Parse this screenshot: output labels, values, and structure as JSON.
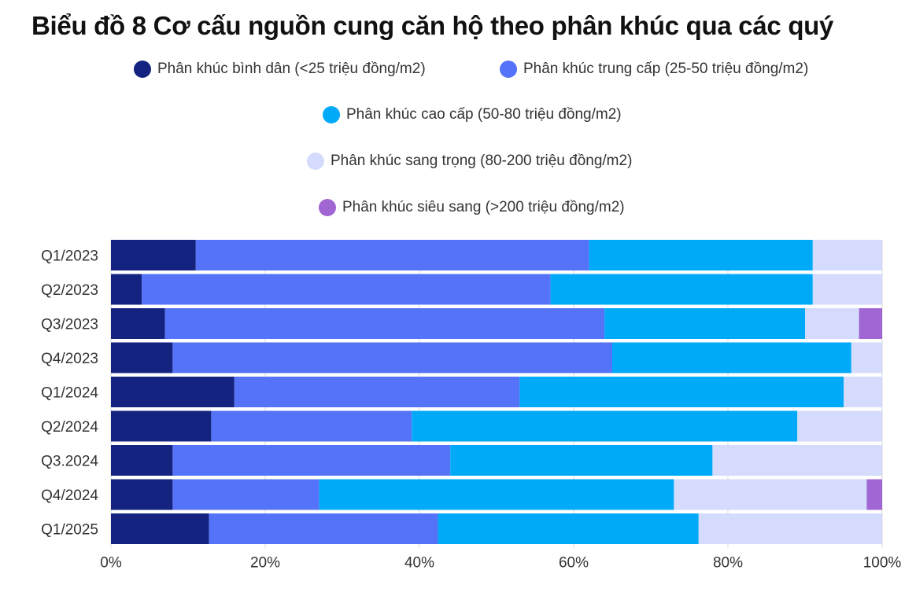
{
  "title": "Biểu đồ 8 Cơ cấu nguồn cung căn hộ theo phân khúc qua các quý",
  "chart_data": {
    "type": "bar",
    "orientation": "horizontal",
    "stacked": "percent",
    "title": "Biểu đồ 8 Cơ cấu nguồn cung căn hộ theo phân khúc qua các quý",
    "categories": [
      "Q1/2023",
      "Q2/2023",
      "Q3/2023",
      "Q4/2023",
      "Q1/2024",
      "Q2/2024",
      "Q3.2024",
      "Q4/2024",
      "Q1/2025"
    ],
    "series": [
      {
        "name": "Phân khúc bình dân (<25 triệu đồng/m2)",
        "color": "#13237F",
        "values": [
          11,
          4,
          7,
          8,
          16,
          13,
          8,
          8,
          12.7
        ]
      },
      {
        "name": "Phân khúc trung cấp (25-50 triệu đồng/m2)",
        "color": "#5573F8",
        "values": [
          51,
          53,
          57,
          57,
          37,
          26,
          36,
          19,
          29.7
        ]
      },
      {
        "name": "Phân khúc cao cấp (50-80 triệu đồng/m2)",
        "color": "#00AAF8",
        "values": [
          29,
          34,
          26,
          31,
          42,
          50,
          34,
          46,
          33.8
        ]
      },
      {
        "name": "Phân khúc sang trọng (80-200 triệu đồng/m2)",
        "color": "#D5DBFC",
        "values": [
          9,
          9,
          7,
          4,
          5,
          11,
          22,
          25,
          23.8
        ]
      },
      {
        "name": "Phân khúc siêu sang (>200 triệu đồng/m2)",
        "color": "#A066D3",
        "values": [
          0,
          0,
          3,
          0,
          0,
          0,
          0,
          2,
          0
        ]
      }
    ],
    "xlim": [
      0,
      100
    ],
    "xticks": [
      "0%",
      "20%",
      "40%",
      "60%",
      "80%",
      "100%"
    ],
    "xtick_values": [
      0,
      20,
      40,
      60,
      80,
      100
    ],
    "grid": true,
    "legend_position": "top"
  }
}
